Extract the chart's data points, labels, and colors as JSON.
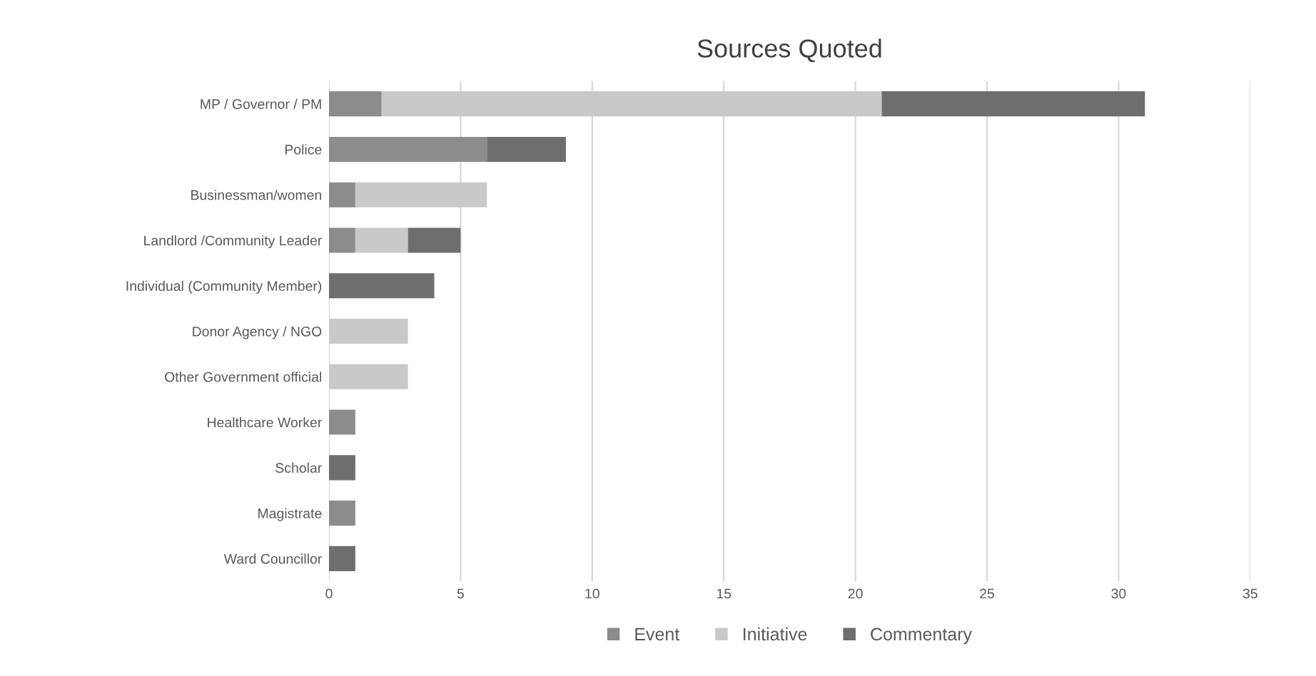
{
  "chart_data": {
    "type": "bar",
    "title": "Sources Quoted",
    "orientation": "horizontal",
    "stacked": true,
    "categories": [
      "MP / Governor / PM",
      "Police",
      "Businessman/women",
      "Landlord /Community Leader",
      "Individual (Community Member)",
      "Donor Agency / NGO",
      "Other Government official",
      "Healthcare Worker",
      "Scholar",
      "Magistrate",
      "Ward Councillor"
    ],
    "series": [
      {
        "name": "Event",
        "color": "#8c8c8c",
        "values": [
          2,
          6,
          1,
          1,
          0,
          0,
          0,
          1,
          0,
          1,
          0
        ]
      },
      {
        "name": "Initiative",
        "color": "#c9c9c9",
        "values": [
          19,
          0,
          5,
          2,
          0,
          3,
          3,
          0,
          0,
          0,
          0
        ]
      },
      {
        "name": "Commentary",
        "color": "#6e6e6e",
        "values": [
          10,
          3,
          0,
          2,
          4,
          0,
          0,
          0,
          1,
          0,
          1
        ]
      }
    ],
    "xlim": [
      0,
      35
    ],
    "xticks": [
      0,
      5,
      10,
      15,
      20,
      25,
      30,
      35
    ],
    "grid": "x",
    "legend": "bottom"
  }
}
